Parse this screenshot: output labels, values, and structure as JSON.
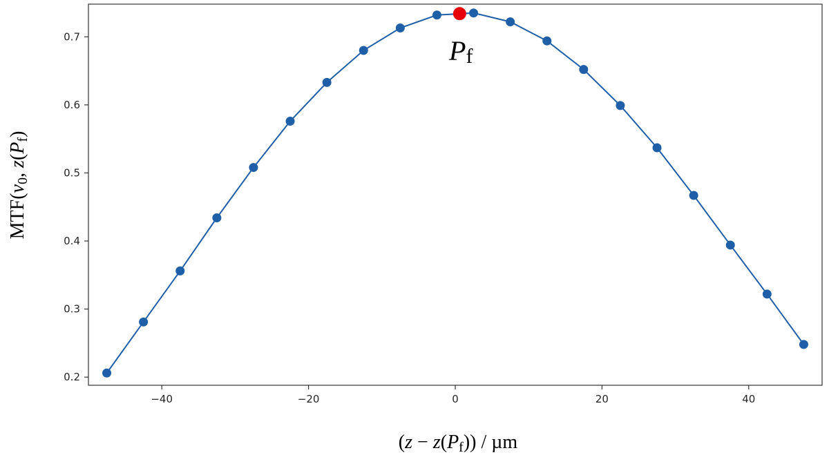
{
  "chart_data": {
    "type": "line",
    "xlabel_parts": {
      "open": "(",
      "z1": "z",
      "minus": " − ",
      "z2": "z",
      "paren": "(",
      "P": "P",
      "sub": "f",
      "close": "))",
      "unit": " / µm"
    },
    "ylabel_parts": {
      "mtf": "MTF(",
      "nu": "ν",
      "nusub": "0",
      "comma": ", ",
      "z": "z",
      "paren": "(",
      "P": "P",
      "sub": "f",
      "close": ")"
    },
    "xlim": [
      -50,
      50
    ],
    "ylim": [
      0.188,
      0.748
    ],
    "xticks": [
      -40,
      -20,
      0,
      20,
      40
    ],
    "xtick_labels": [
      "−40",
      "−20",
      "0",
      "20",
      "40"
    ],
    "yticks": [
      0.2,
      0.3,
      0.4,
      0.5,
      0.6,
      0.7
    ],
    "ytick_labels": [
      "0.2",
      "0.3",
      "0.4",
      "0.5",
      "0.6",
      "0.7"
    ],
    "grid": false,
    "series": [
      {
        "color": "#1f5fa8",
        "x": [
          -47.5,
          -42.5,
          -37.5,
          -32.5,
          -27.5,
          -22.5,
          -17.5,
          -12.5,
          -7.5,
          -2.5,
          2.5,
          7.5,
          12.5,
          17.5,
          22.5,
          27.5,
          32.5,
          37.5,
          42.5,
          47.5
        ],
        "y": [
          0.206,
          0.281,
          0.356,
          0.434,
          0.508,
          0.576,
          0.633,
          0.68,
          0.713,
          0.732,
          0.735,
          0.722,
          0.694,
          0.652,
          0.599,
          0.537,
          0.467,
          0.394,
          0.322,
          0.248
        ]
      }
    ],
    "highlight": {
      "x": 0.6,
      "y": 0.734,
      "color": "#e8000b",
      "label_main": "P",
      "label_sub": "f"
    }
  }
}
